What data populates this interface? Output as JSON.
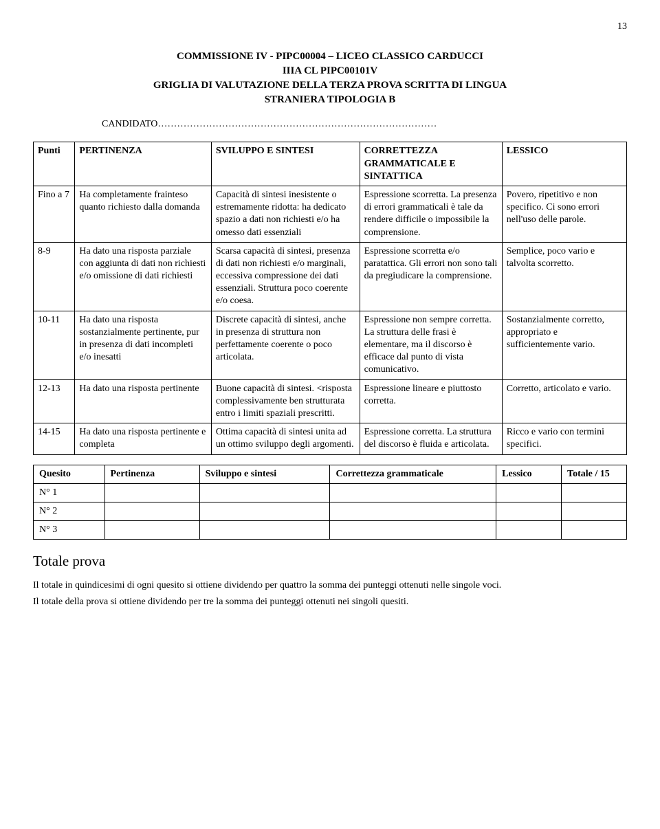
{
  "page_number": "13",
  "heading_line1": "COMMISSIONE IV  - PIPC00004 – LICEO CLASSICO CARDUCCI",
  "heading_line2": "IIIA CL PIPC00101V",
  "heading_line3": "GRIGLIA DI VALUTAZIONE DELLA TERZA PROVA SCRITTA DI LINGUA",
  "heading_line4": "STRANIERA TIPOLOGIA B",
  "candidato_label": "CANDIDATO……………………………………………………………………………",
  "main": {
    "head": {
      "punti": "Punti",
      "pert": "PERTINENZA",
      "svil": "SVILUPPO E SINTESI",
      "corr1": "CORRETTEZZA",
      "corr2": "GRAMMATICALE E",
      "corr3": "SINTATTICA",
      "less": "LESSICO"
    },
    "rows": [
      {
        "punti": "Fino a 7",
        "pert": "Ha completamente frainteso quanto richiesto dalla domanda",
        "svil": "Capacità di sintesi inesistente o estremamente ridotta: ha dedicato spazio a dati non richiesti e/o ha omesso dati essenziali",
        "corr": "Espressione scorretta. La presenza di errori grammaticali è tale da rendere difficile o impossibile la comprensione.",
        "less": "Povero, ripetitivo e non specifico. Ci sono errori nell'uso delle parole."
      },
      {
        "punti": "8-9",
        "pert": "Ha dato una risposta parziale con aggiunta di dati non richiesti e/o omissione di dati richiesti",
        "svil": "Scarsa capacità di sintesi, presenza di dati non richiesti e/o marginali, eccessiva compressione dei dati essenziali. Struttura poco coerente e/o coesa.",
        "corr": "Espressione scorretta e/o paratattica. Gli errori non sono tali da pregiudicare la comprensione.",
        "less": "Semplice, poco vario e talvolta scorretto."
      },
      {
        "punti": "10-11",
        "pert": "Ha dato una risposta sostanzialmente pertinente, pur in presenza di dati incompleti e/o inesatti",
        "svil": "Discrete capacità di sintesi, anche in presenza di struttura non perfettamente coerente o poco articolata.",
        "corr": "Espressione non sempre corretta. La struttura delle frasi è elementare, ma il discorso è efficace dal punto di vista comunicativo.",
        "less": "Sostanzialmente corretto, appropriato e sufficientemente vario."
      },
      {
        "punti": "12-13",
        "pert": "Ha dato una risposta pertinente",
        "svil": "Buone capacità di sintesi. <risposta complessivamente ben strutturata entro i limiti spaziali prescritti.",
        "corr": "Espressione lineare e piuttosto corretta.",
        "less": "Corretto, articolato e vario."
      },
      {
        "punti": "14-15",
        "pert": "Ha dato una risposta pertinente e completa",
        "svil": "Ottima capacità di sintesi unita ad un ottimo sviluppo degli argomenti.",
        "corr": "Espressione corretta. La struttura del discorso è fluida e articolata.",
        "less": "Ricco e vario con termini specifici."
      }
    ]
  },
  "summary": {
    "head": {
      "c1": "Quesito",
      "c2": "Pertinenza",
      "c3": "Sviluppo e sintesi",
      "c4": "Correttezza grammaticale",
      "c5": "Lessico",
      "c6": "Totale / 15"
    },
    "rows": [
      "N° 1",
      "N° 2",
      "N° 3"
    ]
  },
  "totale_prova": "Totale prova",
  "footnote1": "Il totale in quindicesimi di ogni quesito si ottiene dividendo per  quattro la somma dei punteggi ottenuti nelle singole voci.",
  "footnote2": " Il totale della prova si ottiene dividendo per tre la somma dei punteggi ottenuti nei singoli quesiti."
}
